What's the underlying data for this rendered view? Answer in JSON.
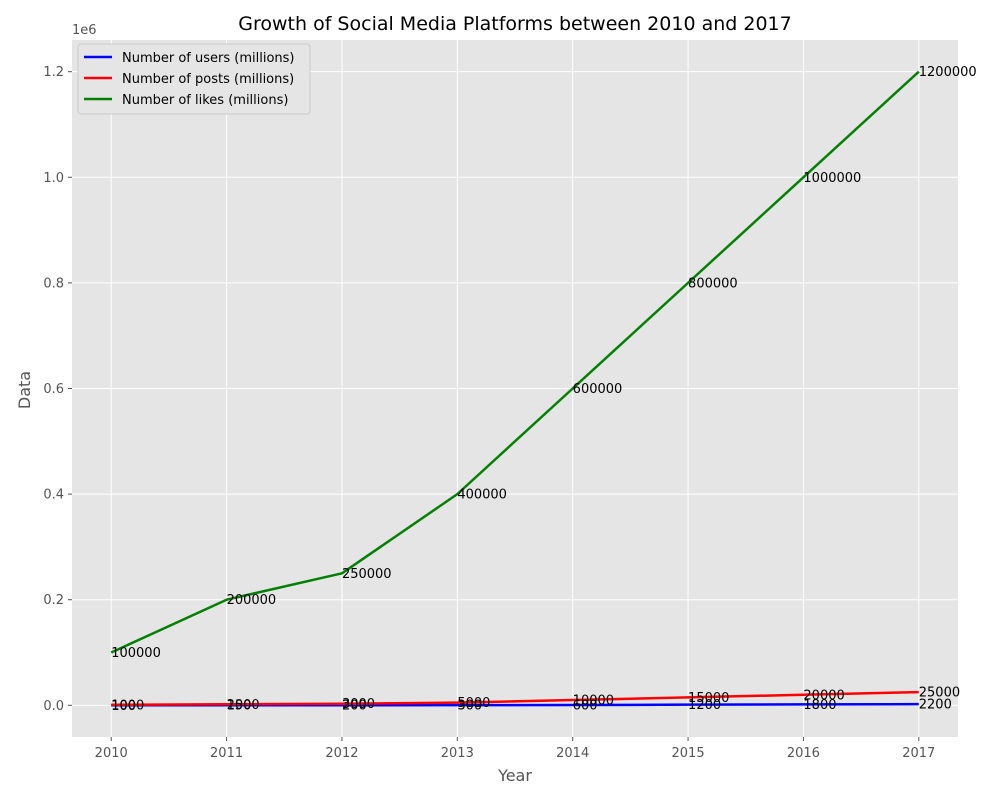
{
  "chart_data": {
    "type": "line",
    "title": "Growth of Social Media Platforms between 2010 and 2017",
    "xlabel": "Year",
    "ylabel": "Data",
    "y_offset_text": "1e6",
    "x": [
      2010,
      2011,
      2012,
      2013,
      2014,
      2015,
      2016,
      2017
    ],
    "xlim": [
      2009.66,
      2017.34
    ],
    "ylim": [
      -60000,
      1260000
    ],
    "y_ticks": [
      0,
      200000,
      400000,
      600000,
      800000,
      1000000,
      1200000
    ],
    "y_tick_labels": [
      "0.0",
      "0.2",
      "0.4",
      "0.6",
      "0.8",
      "1.0",
      "1.2"
    ],
    "grid": true,
    "legend_position": "top-left",
    "series": [
      {
        "name": "Number of users (millions)",
        "color": "#0000ff",
        "values": [
          100,
          150,
          200,
          300,
          600,
          1200,
          1800,
          2200
        ]
      },
      {
        "name": "Number of posts (millions)",
        "color": "#ff0000",
        "values": [
          1000,
          2000,
          3000,
          5000,
          10000,
          15000,
          20000,
          25000
        ]
      },
      {
        "name": "Number of likes (millions)",
        "color": "#008000",
        "values": [
          100000,
          200000,
          250000,
          400000,
          600000,
          800000,
          1000000,
          1200000
        ]
      }
    ]
  }
}
